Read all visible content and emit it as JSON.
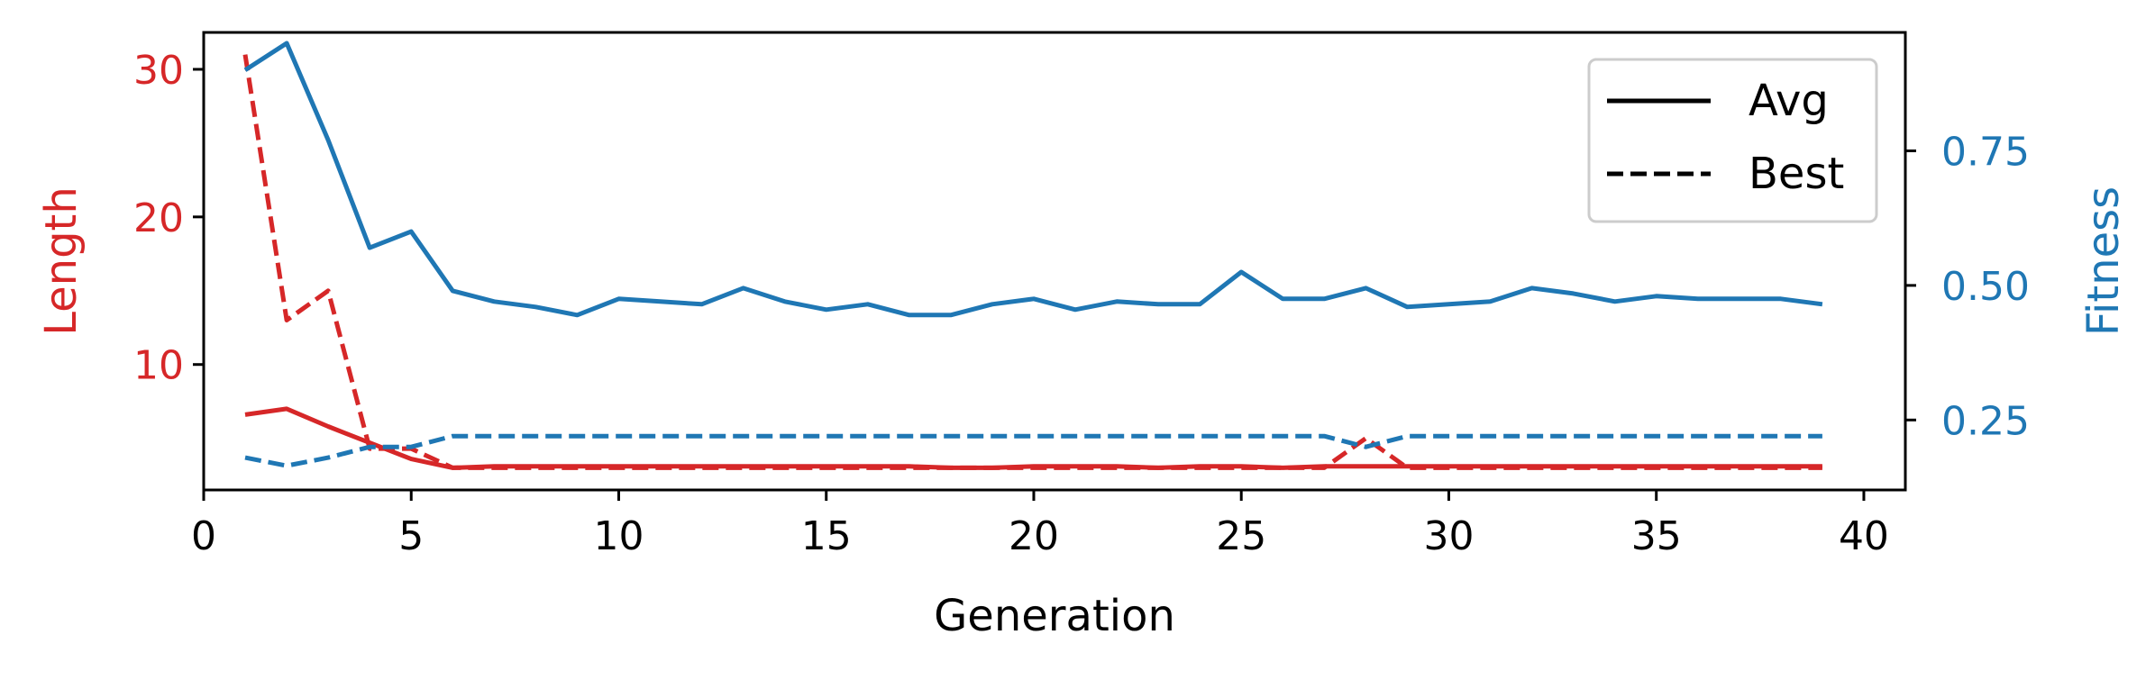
{
  "chart_data": {
    "type": "line",
    "xlabel": "Generation",
    "xlim": [
      0,
      41
    ],
    "xticks": [
      0,
      5,
      10,
      15,
      20,
      25,
      30,
      35,
      40
    ],
    "y_left": {
      "label": "Length",
      "color": "#d62728",
      "lim": [
        1.5,
        32.5
      ],
      "ticks": [
        10,
        20,
        30
      ]
    },
    "y_right": {
      "label": "Fitness",
      "color": "#1f77b4",
      "lim": [
        0.12,
        0.97
      ],
      "ticks": [
        0.25,
        0.5,
        0.75
      ],
      "tick_labels": [
        "0.25",
        "0.50",
        "0.75"
      ]
    },
    "legend": {
      "placement": "top-right",
      "entries": [
        {
          "label": "Avg",
          "style": "solid"
        },
        {
          "label": "Best",
          "style": "dashed"
        }
      ]
    },
    "x": [
      1,
      2,
      3,
      4,
      5,
      6,
      7,
      8,
      9,
      10,
      11,
      12,
      13,
      14,
      15,
      16,
      17,
      18,
      19,
      20,
      21,
      22,
      23,
      24,
      25,
      26,
      27,
      28,
      29,
      30,
      31,
      32,
      33,
      34,
      35,
      36,
      37,
      38,
      39
    ],
    "series": [
      {
        "metric": "Length",
        "stat": "Avg",
        "axis": "left",
        "style": "solid",
        "values": [
          6.6,
          7.0,
          5.8,
          4.7,
          3.6,
          3.0,
          3.1,
          3.1,
          3.1,
          3.1,
          3.1,
          3.1,
          3.1,
          3.1,
          3.1,
          3.1,
          3.1,
          3.0,
          3.0,
          3.1,
          3.1,
          3.1,
          3.0,
          3.1,
          3.1,
          3.0,
          3.1,
          3.1,
          3.1,
          3.1,
          3.1,
          3.1,
          3.1,
          3.1,
          3.1,
          3.1,
          3.1,
          3.1,
          3.1
        ]
      },
      {
        "metric": "Length",
        "stat": "Best",
        "axis": "left",
        "style": "dashed",
        "values": [
          31.0,
          13.0,
          15.0,
          4.3,
          4.3,
          3.0,
          3.0,
          3.0,
          3.0,
          3.0,
          3.0,
          3.0,
          3.0,
          3.0,
          3.0,
          3.0,
          3.0,
          3.0,
          3.0,
          3.0,
          3.0,
          3.0,
          3.0,
          3.0,
          3.0,
          3.0,
          3.0,
          5.0,
          3.0,
          3.0,
          3.0,
          3.0,
          3.0,
          3.0,
          3.0,
          3.0,
          3.0,
          3.0,
          3.0
        ]
      },
      {
        "metric": "Fitness",
        "stat": "Avg",
        "axis": "right",
        "style": "solid",
        "values": [
          0.9,
          0.95,
          0.77,
          0.57,
          0.6,
          0.49,
          0.47,
          0.46,
          0.445,
          0.475,
          0.47,
          0.465,
          0.495,
          0.47,
          0.455,
          0.465,
          0.445,
          0.445,
          0.465,
          0.475,
          0.455,
          0.47,
          0.465,
          0.465,
          0.525,
          0.475,
          0.475,
          0.495,
          0.46,
          0.465,
          0.47,
          0.495,
          0.485,
          0.47,
          0.48,
          0.475,
          0.475,
          0.475,
          0.465
        ]
      },
      {
        "metric": "Fitness",
        "stat": "Best",
        "axis": "right",
        "style": "dashed",
        "values": [
          0.18,
          0.165,
          0.18,
          0.2,
          0.2,
          0.22,
          0.22,
          0.22,
          0.22,
          0.22,
          0.22,
          0.22,
          0.22,
          0.22,
          0.22,
          0.22,
          0.22,
          0.22,
          0.22,
          0.22,
          0.22,
          0.22,
          0.22,
          0.22,
          0.22,
          0.22,
          0.22,
          0.2,
          0.22,
          0.22,
          0.22,
          0.22,
          0.22,
          0.22,
          0.22,
          0.22,
          0.22,
          0.22,
          0.22
        ]
      }
    ]
  }
}
